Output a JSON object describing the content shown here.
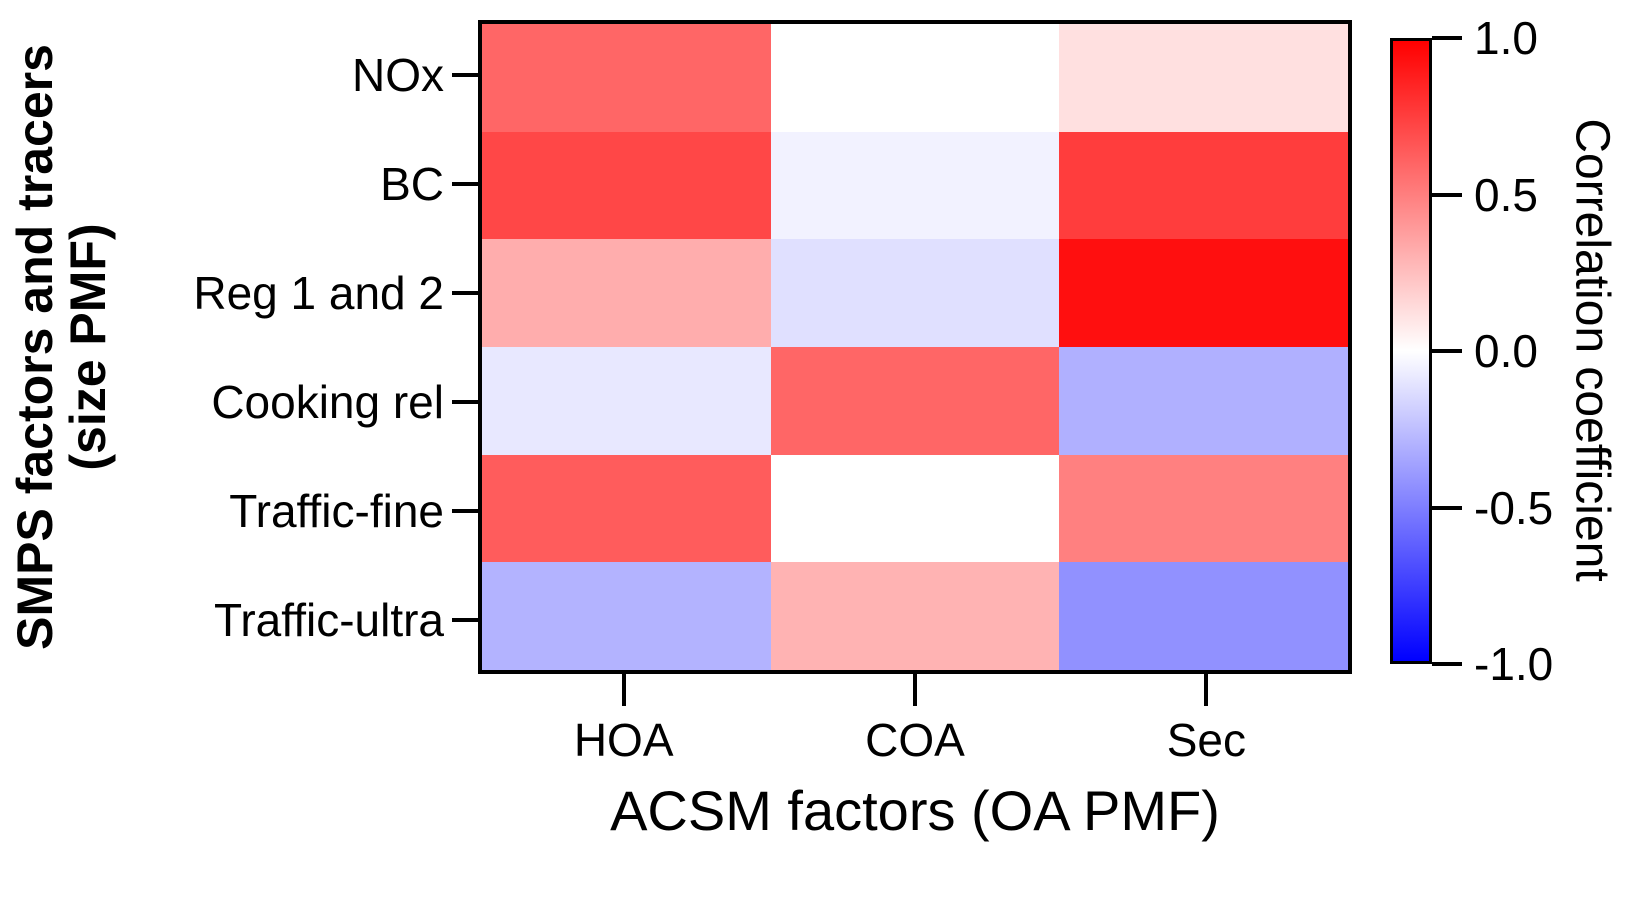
{
  "figure": {
    "background": "#FFFFFF",
    "axis_color": "#000000"
  },
  "chart_data": {
    "type": "heatmap",
    "title": "",
    "xlabel": "ACSM factors (OA PMF)",
    "ylabel": "SMPS factors and tracers (size PMF)",
    "ylabel_lines": [
      "SMPS factors and tracers",
      "(size PMF)"
    ],
    "columns": [
      "HOA",
      "COA",
      "Sec"
    ],
    "rows": [
      "NOx",
      "BC",
      "Reg 1 and 2",
      "Cooking rel",
      "Traffic-fine",
      "Traffic-ultra"
    ],
    "values": [
      [
        0.6,
        0.0,
        0.12
      ],
      [
        0.72,
        -0.05,
        0.76
      ],
      [
        0.32,
        -0.12,
        0.94
      ],
      [
        -0.09,
        0.6,
        -0.31
      ],
      [
        0.64,
        0.0,
        0.5
      ],
      [
        -0.3,
        0.3,
        -0.43
      ]
    ],
    "value_range": [
      -1,
      1
    ],
    "colormap": {
      "negative": "#0000FF",
      "zero": "#FFFFFF",
      "positive": "#FF0000"
    },
    "colorbar": {
      "label": "Correlation coefficient",
      "ticks": [
        1.0,
        0.5,
        0.0,
        -0.5,
        -1.0
      ],
      "tick_labels": [
        "1.0",
        "0.5",
        "0.0",
        "-0.5",
        "-1.0"
      ]
    },
    "grid": false,
    "legend_position": "right-colorbar"
  }
}
